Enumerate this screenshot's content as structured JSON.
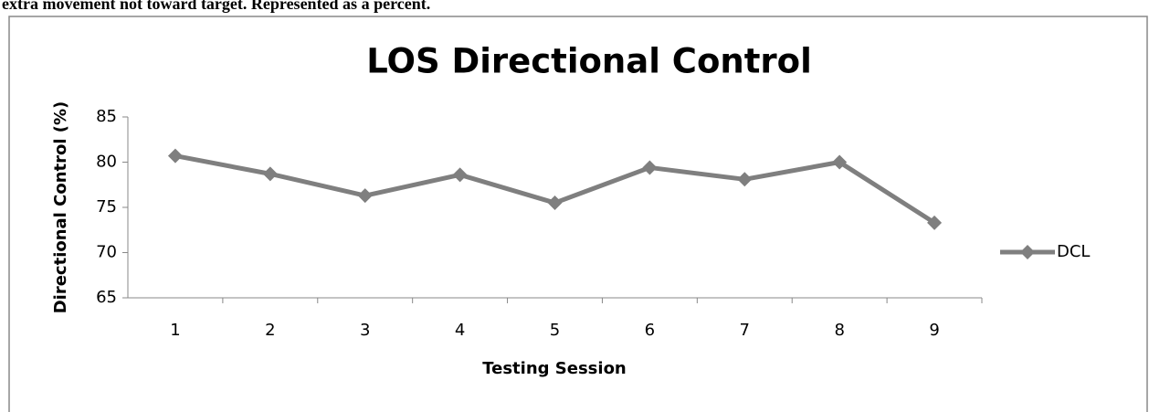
{
  "caption": "extra movement not toward target. Represented as a percent.",
  "chart_data": {
    "type": "line",
    "title": "LOS Directional Control",
    "x_label": "Testing Session",
    "y_label": "Directional Control (%)",
    "categories": [
      "1",
      "2",
      "3",
      "4",
      "5",
      "6",
      "7",
      "8",
      "9"
    ],
    "series": [
      {
        "name": "DCL",
        "color": "#7f7f7f",
        "values": [
          80.7,
          78.7,
          76.3,
          78.6,
          75.5,
          79.4,
          78.1,
          80.0,
          73.3
        ]
      }
    ],
    "ylim": [
      65,
      85
    ],
    "yticks": [
      65,
      70,
      75,
      80,
      85
    ],
    "grid": false,
    "legend": "right"
  }
}
